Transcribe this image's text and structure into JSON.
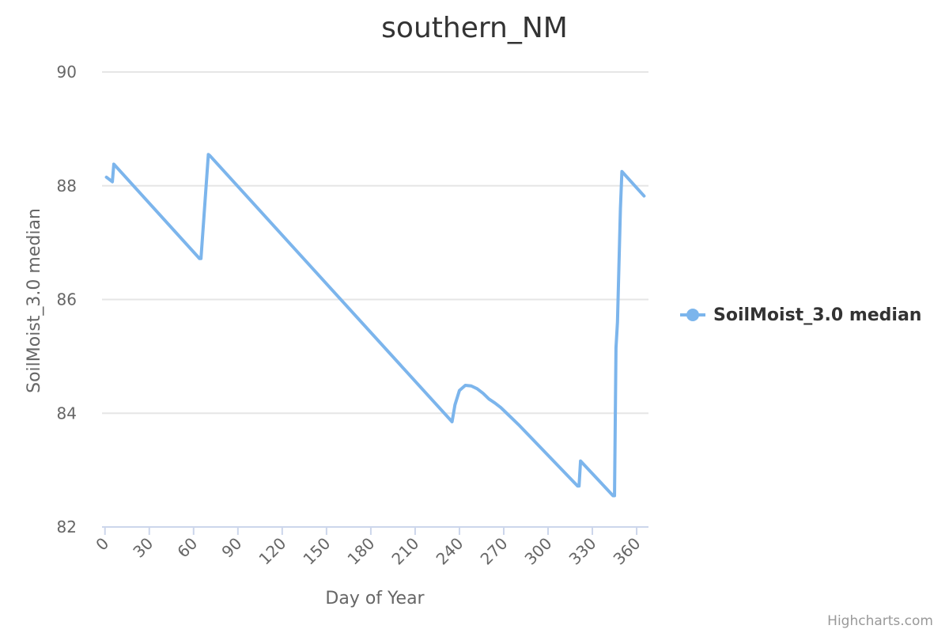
{
  "chart_data": {
    "type": "line",
    "title": "southern_NM",
    "xlabel": "Day of Year",
    "ylabel": "SoilMoist_3.0 median",
    "xlim": [
      -2,
      368
    ],
    "ylim": [
      82,
      90
    ],
    "xticks": [
      0,
      30,
      60,
      90,
      120,
      150,
      180,
      210,
      240,
      270,
      300,
      330,
      360
    ],
    "yticks": [
      82,
      84,
      86,
      88,
      90
    ],
    "grid": true,
    "legend_position": "right",
    "series": [
      {
        "name": "SoilMoist_3.0 median",
        "color": "#7cb5ec",
        "x": [
          1,
          5,
          6,
          64,
          65,
          70,
          71,
          235,
          237,
          240,
          244,
          248,
          252,
          256,
          260,
          264,
          268,
          272,
          276,
          280,
          320,
          321,
          322,
          344,
          345,
          346,
          347,
          349,
          350,
          365
        ],
        "y": [
          88.15,
          88.07,
          88.38,
          86.72,
          86.72,
          88.55,
          88.53,
          83.85,
          84.15,
          84.4,
          84.49,
          84.48,
          84.43,
          84.35,
          84.25,
          84.18,
          84.1,
          84.0,
          83.9,
          83.8,
          82.72,
          82.72,
          83.16,
          82.55,
          82.55,
          85.15,
          85.6,
          87.6,
          88.25,
          87.82
        ]
      }
    ],
    "credits": "Highcharts.com"
  }
}
